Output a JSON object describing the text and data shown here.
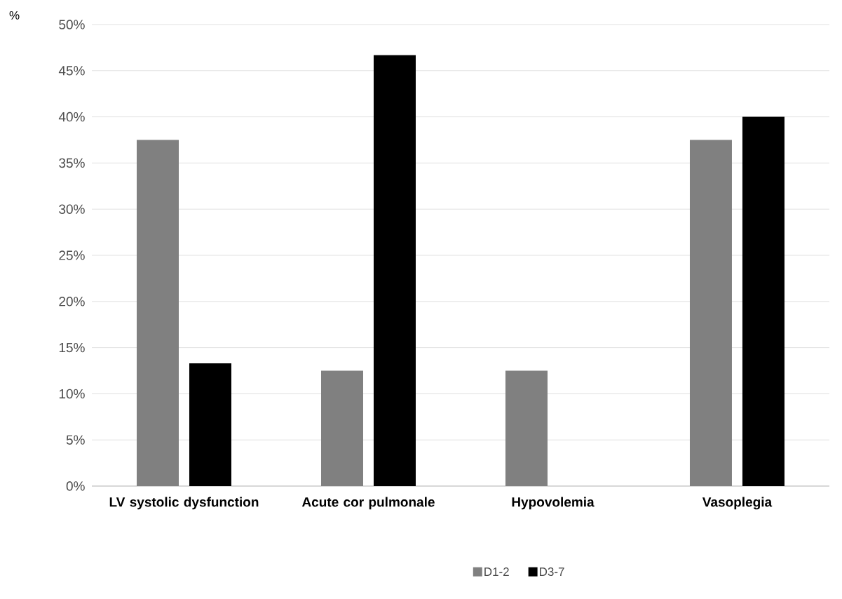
{
  "chart_data": {
    "type": "bar",
    "ylabel": "%",
    "categories": [
      "LV systolic dysfunction",
      "Acute cor pulmonale",
      "Hypovolemia",
      "Vasoplegia"
    ],
    "series": [
      {
        "name": "D1-2",
        "color": "#808080",
        "values": [
          37.5,
          12.5,
          12.5,
          37.5
        ]
      },
      {
        "name": "D3-7",
        "color": "#000000",
        "values": [
          13.3,
          46.7,
          0,
          40
        ]
      }
    ],
    "ylim": [
      0,
      50
    ],
    "yticks": [
      {
        "value": 0,
        "label": "0%"
      },
      {
        "value": 5,
        "label": "5%"
      },
      {
        "value": 10,
        "label": "10%"
      },
      {
        "value": 15,
        "label": "15%"
      },
      {
        "value": 20,
        "label": "20%"
      },
      {
        "value": 25,
        "label": "25%"
      },
      {
        "value": 30,
        "label": "30%"
      },
      {
        "value": 35,
        "label": "35%"
      },
      {
        "value": 40,
        "label": "40%"
      },
      {
        "value": 45,
        "label": "45%"
      },
      {
        "value": 50,
        "label": "50%"
      }
    ],
    "grid": "y",
    "legend": "bottom"
  }
}
